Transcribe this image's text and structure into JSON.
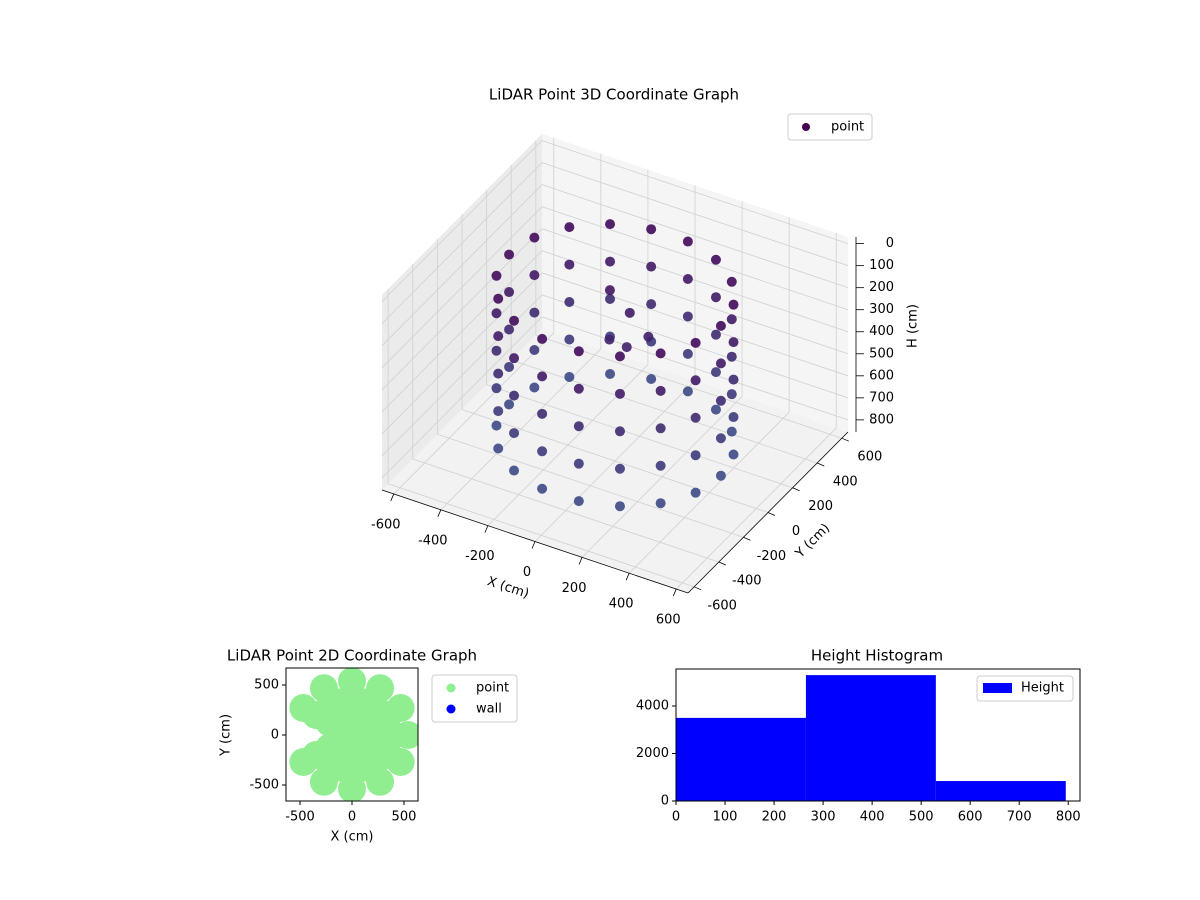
{
  "chart_data": [
    {
      "type": "scatter3d",
      "title": "LiDAR Point 3D Coordinate Graph",
      "xlabel": "X (cm)",
      "ylabel": "Y (cm)",
      "zlabel": "H (cm)",
      "xlim": [
        -650,
        650
      ],
      "ylim": [
        -650,
        650
      ],
      "zlim": [
        -30,
        855
      ],
      "zinverted": true,
      "xticks": [
        -600,
        -400,
        -200,
        0,
        200,
        400,
        600
      ],
      "yticks": [
        -600,
        -400,
        -200,
        0,
        200,
        400,
        600
      ],
      "zticks": [
        0,
        100,
        200,
        300,
        400,
        500,
        600,
        700,
        800
      ],
      "colormap": [
        "#440154",
        "#3b528b"
      ],
      "legend": "upper right",
      "series": [
        {
          "name": "point",
          "color": "#440154",
          "x": [
            450,
            423,
            345,
            225,
            78,
            -78,
            -225,
            -345,
            -423,
            -450,
            -423,
            -345,
            -225,
            -78,
            78,
            225,
            345,
            423,
            450,
            423,
            345,
            225,
            78,
            -78,
            -225,
            -345,
            -423,
            -450,
            -423,
            -345,
            -225,
            -78,
            78,
            225,
            345,
            423,
            450,
            423,
            345,
            225,
            78,
            -78,
            -225,
            -345,
            -423,
            -450,
            -423,
            -345,
            -225,
            -78,
            78,
            225,
            345,
            423,
            450,
            423,
            345,
            225,
            78,
            -78,
            -225,
            -345,
            -423,
            -450,
            -423,
            -345,
            -225,
            -78,
            78,
            225,
            345,
            423,
            450,
            423,
            345,
            225,
            78,
            -78,
            -225,
            -345,
            -423,
            -450,
            -423,
            -345,
            -225,
            -78,
            78,
            225,
            345,
            423,
            -100,
            0,
            100,
            -50,
            50
          ],
          "y": [
            0,
            154,
            289,
            390,
            443,
            443,
            390,
            289,
            154,
            0,
            -154,
            -289,
            -390,
            -443,
            -443,
            -390,
            -289,
            -154,
            0,
            154,
            289,
            390,
            443,
            443,
            390,
            289,
            154,
            0,
            -154,
            -289,
            -390,
            -443,
            -443,
            -390,
            -289,
            -154,
            0,
            154,
            289,
            390,
            443,
            443,
            390,
            289,
            154,
            0,
            -154,
            -289,
            -390,
            -443,
            -443,
            -390,
            -289,
            -154,
            0,
            154,
            289,
            390,
            443,
            443,
            390,
            289,
            154,
            0,
            -154,
            -289,
            -390,
            -443,
            -443,
            -390,
            -289,
            -154,
            0,
            154,
            289,
            390,
            443,
            443,
            390,
            289,
            154,
            0,
            -154,
            -289,
            -390,
            -443,
            -443,
            -390,
            -289,
            -154,
            150,
            120,
            80,
            50,
            0
          ],
          "z": [
            760,
            760,
            760,
            760,
            760,
            760,
            760,
            760,
            760,
            760,
            760,
            760,
            760,
            760,
            760,
            760,
            760,
            760,
            590,
            590,
            590,
            590,
            590,
            590,
            590,
            590,
            590,
            590,
            590,
            590,
            590,
            590,
            590,
            590,
            590,
            590,
            420,
            420,
            420,
            420,
            420,
            420,
            420,
            420,
            420,
            420,
            420,
            420,
            420,
            420,
            420,
            420,
            420,
            420,
            250,
            250,
            250,
            250,
            250,
            250,
            250,
            250,
            250,
            250,
            250,
            250,
            250,
            250,
            250,
            250,
            250,
            250,
            80,
            80,
            80,
            80,
            80,
            80,
            80,
            80,
            80,
            80,
            80,
            80,
            80,
            80,
            80,
            80,
            80,
            80,
            200,
            250,
            300,
            350,
            320
          ]
        }
      ]
    },
    {
      "type": "scatter",
      "title": "LiDAR Point 2D Coordinate Graph",
      "xlabel": "X (cm)",
      "ylabel": "Y (cm)",
      "xlim": [
        -635,
        635
      ],
      "ylim": [
        -660,
        670
      ],
      "xticks": [
        -500,
        0,
        500
      ],
      "yticks": [
        -500,
        0,
        500
      ],
      "legend": "outside right",
      "series": [
        {
          "name": "point",
          "color": "#90ee90",
          "x": [
            540,
            468,
            270,
            0,
            -270,
            -468,
            -468,
            -270,
            0,
            270,
            468,
            400,
            346,
            200,
            0,
            -200,
            -346,
            -346,
            -200,
            0,
            200,
            346,
            250,
            217,
            125,
            0,
            -125,
            -217,
            -217,
            -125,
            0,
            125,
            217,
            100,
            50,
            -50,
            -100,
            -50,
            50,
            0
          ],
          "y": [
            0,
            270,
            468,
            540,
            468,
            270,
            -270,
            -468,
            -540,
            -468,
            -270,
            0,
            200,
            346,
            400,
            346,
            200,
            -200,
            -346,
            -400,
            -346,
            -200,
            0,
            125,
            217,
            250,
            217,
            125,
            -125,
            -217,
            -250,
            -217,
            -125,
            0,
            87,
            87,
            0,
            -87,
            -87,
            0
          ]
        },
        {
          "name": "wall",
          "color": "#0000ff",
          "x": [],
          "y": []
        }
      ]
    },
    {
      "type": "histogram",
      "title": "Height Histogram",
      "bins": [
        0,
        265,
        530,
        795
      ],
      "values": [
        3500,
        5300,
        840
      ],
      "color": "#0000ff",
      "series_name": "Height",
      "legend": "upper right",
      "xlim": [
        0,
        824
      ],
      "ylim": [
        0,
        5558
      ],
      "xticks": [
        0,
        100,
        200,
        300,
        400,
        500,
        600,
        700,
        800
      ],
      "yticks": [
        0,
        2000,
        4000
      ]
    }
  ]
}
